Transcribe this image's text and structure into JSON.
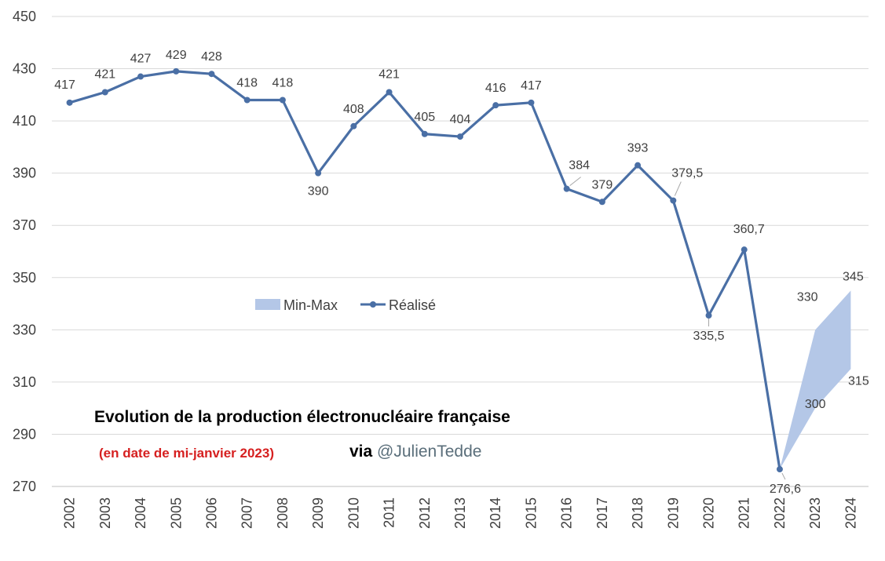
{
  "chart_data": {
    "type": "line",
    "categories": [
      "2002",
      "2003",
      "2004",
      "2005",
      "2006",
      "2007",
      "2008",
      "2009",
      "2010",
      "2011",
      "2012",
      "2013",
      "2014",
      "2015",
      "2016",
      "2017",
      "2018",
      "2019",
      "2020",
      "2021",
      "2022",
      "2023",
      "2024"
    ],
    "series": [
      {
        "name": "Réalisé",
        "color": "#4a6fa5",
        "values": [
          417,
          421,
          427,
          429,
          428,
          418,
          418,
          390,
          408,
          421,
          405,
          404,
          416,
          417,
          384,
          379,
          393,
          379.5,
          335.5,
          360.7,
          276.6,
          null,
          null
        ],
        "labels": [
          "417",
          "421",
          "427",
          "429",
          "428",
          "418",
          "418",
          "390",
          "408",
          "421",
          "405",
          "404",
          "416",
          "417",
          "384",
          "379",
          "393",
          "379,5",
          "335,5",
          "360,7",
          "276,6",
          "",
          ""
        ]
      },
      {
        "name": "Min-Max",
        "type": "area-range",
        "color": "#b4c7e7",
        "x": [
          "2022",
          "2023",
          "2024"
        ],
        "min": [
          276.6,
          300,
          315
        ],
        "max": [
          276.6,
          330,
          345
        ],
        "labels_min": [
          "",
          "300",
          "315"
        ],
        "labels_max": [
          "",
          "330",
          "345"
        ]
      }
    ],
    "ylim": [
      270,
      450
    ],
    "yticks": [
      270,
      290,
      310,
      330,
      350,
      370,
      390,
      410,
      430,
      450
    ],
    "grid": true,
    "legend_position": "center-left",
    "title": "Evolution de la production électronucléaire  française",
    "subtitle": "(en date de mi-janvier 2023)",
    "credit_via": "via",
    "credit_handle": "@JulienTedde"
  }
}
